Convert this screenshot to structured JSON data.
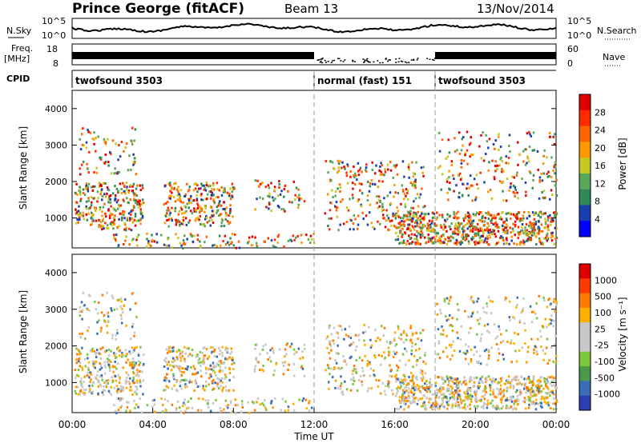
{
  "header": {
    "station": "Prince George (fitACF)",
    "beam": "Beam 13",
    "date": "13/Nov/2014"
  },
  "panels": {
    "nsky": {
      "label": "N.Sky",
      "ticks": [
        "10^5",
        "10^0"
      ],
      "right_ticks": [
        "10^5",
        "10^0"
      ],
      "right_label": "N.Search"
    },
    "freq": {
      "label_line1": "Freq.",
      "label_line2": "[MHz]",
      "ticks": [
        "18",
        "8"
      ],
      "right_ticks": [
        "60",
        "0"
      ],
      "right_label": "Nave"
    },
    "cpid": {
      "label": "CPID",
      "modes": [
        {
          "name": "twofsound 3503",
          "start_hour": 0,
          "end_hour": 12
        },
        {
          "name": "normal (fast) 151",
          "start_hour": 12,
          "end_hour": 18
        },
        {
          "name": "twofsound 3503",
          "start_hour": 18,
          "end_hour": 24
        }
      ]
    }
  },
  "colors": {
    "power_scale": [
      "#0000ff",
      "#1a3fb0",
      "#2e8b57",
      "#5aa85a",
      "#c8c820",
      "#ff9900",
      "#ff6600",
      "#ff2a00",
      "#e00000"
    ],
    "velocity_scale": [
      "#2a3fb0",
      "#3a6fb8",
      "#4a9a4a",
      "#7cc83c",
      "#c8c8c8",
      "#c8c8c8",
      "#ffb000",
      "#ff7a00",
      "#ff3a00",
      "#e00000"
    ]
  },
  "chart_data": [
    {
      "type": "heatmap",
      "title": "Power",
      "ylabel": "Slant Range [km]",
      "yticks": [
        "1000",
        "2000",
        "3000",
        "4000"
      ],
      "ylim": [
        180,
        4500
      ],
      "colorbar": {
        "label": "Power [dB]",
        "ticks": [
          "28",
          "24",
          "20",
          "16",
          "12",
          "8",
          "4"
        ],
        "range": [
          0,
          30
        ]
      },
      "xlim_hours": [
        0,
        24
      ]
    },
    {
      "type": "heatmap",
      "title": "Velocity",
      "ylabel": "Slant Range [km]",
      "yticks": [
        "1000",
        "2000",
        "3000",
        "4000"
      ],
      "ylim": [
        180,
        4500
      ],
      "colorbar": {
        "label": "Velocity [m s⁻¹]",
        "ticks": [
          "1000",
          "500",
          "100",
          "25",
          "-25",
          "-100",
          "-500",
          "-1000"
        ]
      },
      "xlim_hours": [
        0,
        24
      ]
    }
  ],
  "xaxis": {
    "label": "Time UT",
    "ticks": [
      "00:00",
      "04:00",
      "08:00",
      "12:00",
      "16:00",
      "20:00",
      "00:00"
    ]
  }
}
